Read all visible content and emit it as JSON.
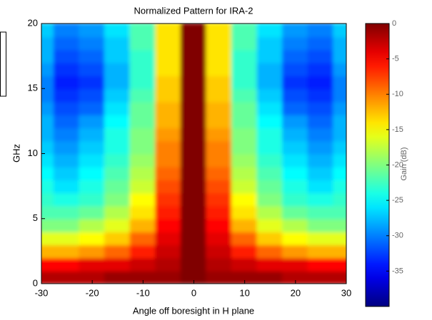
{
  "chart_data": {
    "type": "heatmap",
    "title": "Normalized Pattern for IRA-2",
    "xlabel": "Angle off boresight in H plane",
    "ylabel": "GHz",
    "colorbar_label": "Gain (dB)",
    "colormap": "jet",
    "x": [
      -30,
      -25,
      -20,
      -15,
      -10,
      -5,
      0,
      5,
      10,
      15,
      20,
      25,
      30
    ],
    "y": [
      0.5,
      1.5,
      2.5,
      3.5,
      4.5,
      5.5,
      6.5,
      7.5,
      8.5,
      9.5,
      10.5,
      11.5,
      12.5,
      13.5,
      14.5,
      15.5,
      16.5,
      17.5,
      18.5,
      19.5
    ],
    "z": [
      [
        -2,
        -2,
        -2,
        -1,
        -1,
        -1,
        0,
        -1,
        -1,
        -1,
        -2,
        -2,
        -2
      ],
      [
        -5,
        -5,
        -4,
        -4,
        -3,
        -2,
        0,
        -2,
        -3,
        -4,
        -4,
        -5,
        -5
      ],
      [
        -12,
        -12,
        -11,
        -9,
        -6,
        -3,
        0,
        -3,
        -6,
        -9,
        -11,
        -12,
        -12
      ],
      [
        -16,
        -16,
        -15,
        -13,
        -9,
        -4,
        0,
        -4,
        -9,
        -13,
        -15,
        -16,
        -16
      ],
      [
        -20,
        -20,
        -18,
        -16,
        -12,
        -5,
        0,
        -5,
        -12,
        -16,
        -18,
        -20,
        -20
      ],
      [
        -22,
        -22,
        -21,
        -18,
        -14,
        -6,
        0,
        -6,
        -14,
        -18,
        -21,
        -22,
        -22
      ],
      [
        -23,
        -24,
        -23,
        -20,
        -15,
        -7,
        0,
        -7,
        -15,
        -20,
        -23,
        -24,
        -23
      ],
      [
        -24,
        -26,
        -24,
        -21,
        -17,
        -8,
        0,
        -8,
        -17,
        -21,
        -24,
        -26,
        -24
      ],
      [
        -25,
        -27,
        -25,
        -22,
        -18,
        -9,
        0,
        -9,
        -18,
        -22,
        -25,
        -27,
        -25
      ],
      [
        -26,
        -28,
        -26,
        -23,
        -19,
        -10,
        0,
        -10,
        -19,
        -23,
        -26,
        -28,
        -26
      ],
      [
        -27,
        -29,
        -27,
        -24,
        -20,
        -10,
        0,
        -10,
        -20,
        -24,
        -27,
        -29,
        -27
      ],
      [
        -28,
        -30,
        -28,
        -24,
        -20,
        -11,
        0,
        -11,
        -20,
        -24,
        -28,
        -30,
        -28
      ],
      [
        -28,
        -31,
        -29,
        -25,
        -21,
        -12,
        0,
        -12,
        -21,
        -25,
        -29,
        -31,
        -28
      ],
      [
        -29,
        -32,
        -31,
        -26,
        -21,
        -12,
        0,
        -12,
        -21,
        -26,
        -31,
        -32,
        -29
      ],
      [
        -30,
        -33,
        -32,
        -27,
        -22,
        -13,
        0,
        -13,
        -22,
        -27,
        -32,
        -33,
        -30
      ],
      [
        -30,
        -34,
        -33,
        -28,
        -23,
        -13,
        0,
        -13,
        -23,
        -28,
        -33,
        -34,
        -30
      ],
      [
        -29,
        -33,
        -32,
        -28,
        -23,
        -14,
        0,
        -14,
        -23,
        -28,
        -32,
        -33,
        -29
      ],
      [
        -28,
        -32,
        -31,
        -27,
        -23,
        -14,
        0,
        -14,
        -23,
        -27,
        -31,
        -32,
        -28
      ],
      [
        -28,
        -31,
        -30,
        -27,
        -22,
        -14,
        0,
        -14,
        -22,
        -27,
        -30,
        -31,
        -28
      ],
      [
        -27,
        -30,
        -29,
        -26,
        -22,
        -14,
        0,
        -14,
        -22,
        -26,
        -29,
        -30,
        -27
      ]
    ],
    "xlim": [
      -30,
      30
    ],
    "ylim": [
      0,
      20
    ],
    "zlim": [
      -40,
      0
    ],
    "xticks": [
      -30,
      -20,
      -10,
      0,
      10,
      20,
      30
    ],
    "yticks": [
      0,
      5,
      10,
      15,
      20
    ],
    "cticks": [
      0,
      -5,
      -10,
      -15,
      -20,
      -25,
      -30,
      -35
    ]
  }
}
